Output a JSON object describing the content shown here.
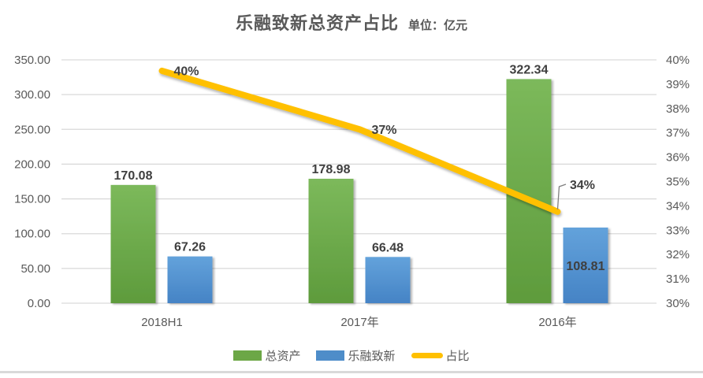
{
  "title": {
    "text": "乐融致新总资产占比",
    "unit": "单位：亿元"
  },
  "colors": {
    "green_top": "#7CB95B",
    "green_bottom": "#5E9B3C",
    "green_legend": "#6CA746",
    "blue_top": "#63A2DB",
    "blue_bottom": "#4583C5",
    "blue_legend": "#4E8DC9",
    "line": "#FFC000",
    "grid": "#D9D9D9",
    "axis_text": "#595959",
    "data_label": "#3F3F3F",
    "callout": "#7F7F7F"
  },
  "chart_data": {
    "type": "bar",
    "subtype": "bar-line-combo",
    "title": "乐融致新总资产占比",
    "unit_note": "单位：亿元",
    "categories": [
      "2018H1",
      "2017年",
      "2016年"
    ],
    "series": [
      {
        "name": "总资产",
        "slug": "total-assets",
        "type": "bar",
        "values": [
          170.08,
          178.98,
          322.34
        ],
        "labels": [
          "170.08",
          "178.98",
          "322.34"
        ],
        "label_placements": [
          "above",
          "above",
          "above"
        ]
      },
      {
        "name": "乐融致新",
        "slug": "lerong-zhixin",
        "type": "bar",
        "values": [
          67.26,
          66.48,
          108.81
        ],
        "labels": [
          "67.26",
          "66.48",
          "108.81"
        ],
        "label_placements": [
          "above",
          "above",
          "inside"
        ]
      },
      {
        "name": "占比",
        "slug": "ratio",
        "type": "line",
        "axis": "right",
        "values": [
          39.55,
          37.14,
          33.76
        ],
        "labels": [
          "40%",
          "37%",
          "34%"
        ]
      }
    ],
    "left_axis": {
      "min": 0,
      "max": 350,
      "ticks": [
        "350.00",
        "300.00",
        "250.00",
        "200.00",
        "150.00",
        "100.00",
        "50.00",
        "0.00"
      ]
    },
    "right_axis": {
      "min": 30,
      "max": 40,
      "ticks": [
        "40%",
        "39%",
        "38%",
        "37%",
        "36%",
        "35%",
        "34%",
        "33%",
        "32%",
        "31%",
        "30%"
      ]
    },
    "grid": "horizontal",
    "legend_position": "bottom",
    "legend": [
      {
        "label": "总资产",
        "marker": "rect",
        "slug": "total-assets"
      },
      {
        "label": "乐融致新",
        "marker": "rect",
        "slug": "lerong-zhixin"
      },
      {
        "label": "占比",
        "marker": "line",
        "slug": "ratio"
      }
    ]
  }
}
